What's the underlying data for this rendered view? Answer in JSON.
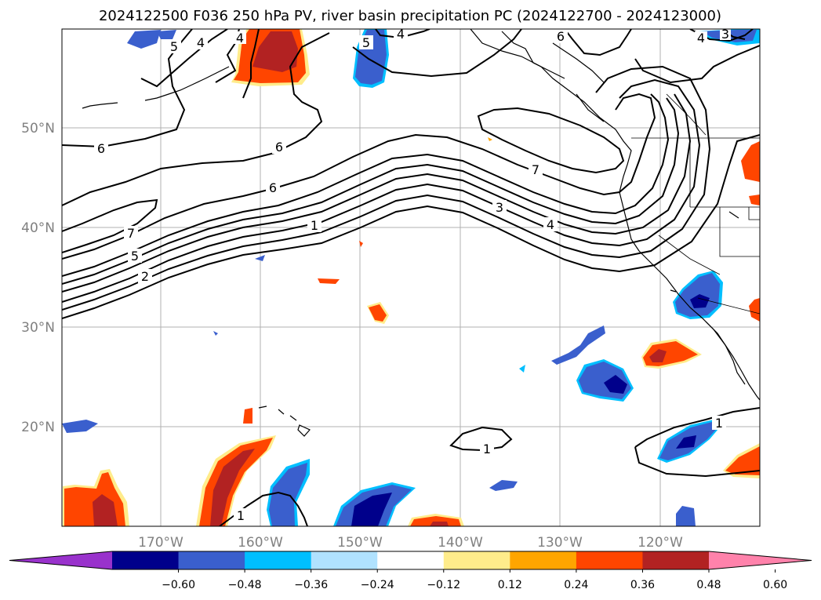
{
  "title": "2024122500 F036 250 hPa PV, river basin precipitation PC (2024122700 - 2024123000)",
  "lon_labels": [
    "170°W",
    "160°W",
    "150°W",
    "140°W",
    "130°W",
    "120°W"
  ],
  "lat_labels": [
    "50°N",
    "40°N",
    "30°N",
    "20°N"
  ],
  "pv_contour_labels": {
    "c6a": "6",
    "c6b": "6",
    "c6c": "6",
    "c6d": "6",
    "c7a": "7",
    "c7b": "7",
    "c5a": "5",
    "c5b": "5",
    "c4a": "4",
    "c4b": "4",
    "c4c": "4",
    "c4d": "4",
    "c3a": "3",
    "c2a": "2",
    "c1a": "1",
    "c1b": "1",
    "c1c": "1",
    "c1d": "1",
    "c3b": "3"
  },
  "colorbar": {
    "ticks": [
      "−0.60",
      "−0.48",
      "−0.36",
      "−0.24",
      "−0.12",
      "0.12",
      "0.24",
      "0.36",
      "0.48",
      "0.60"
    ],
    "colors": {
      "under": "#9932CC",
      "b1": "#00008B",
      "b2": "#3A5FCD",
      "b3": "#00BFFF",
      "b4": "#B0E2FF",
      "b5": "#FFFFFF",
      "b6": "#FFEC8B",
      "b7": "#FFA500",
      "b8": "#FF4500",
      "b9": "#B22222",
      "over": "#FF82AB"
    }
  }
}
